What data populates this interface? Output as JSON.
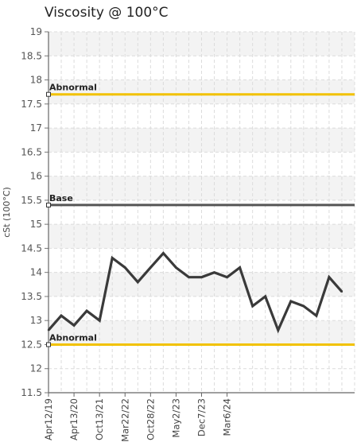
{
  "chart_data": {
    "type": "line",
    "title": "Viscosity @ 100°C",
    "ylabel": "cSt (100°C)",
    "ylim": [
      11.5,
      19
    ],
    "yticks": [
      "11.5",
      "12",
      "12.5",
      "13",
      "13.5",
      "14",
      "14.5",
      "15",
      "15.5",
      "16",
      "16.5",
      "17",
      "17.5",
      "18",
      "18.5",
      "19"
    ],
    "xtick_labels": [
      "Apr12/19",
      "Apr13/20",
      "Oct13/21",
      "Mar22/22",
      "Oct28/22",
      "May2/23",
      "Dec7/23",
      "Mar6/24"
    ],
    "grid": true,
    "series": [
      {
        "values": [
          12.8,
          13.1,
          12.9,
          13.2,
          13.0,
          14.3,
          14.1,
          13.8,
          14.1,
          14.4,
          14.1,
          13.9,
          13.9,
          14.0,
          13.9,
          14.1,
          13.3,
          13.5,
          12.8,
          13.4,
          13.3,
          13.1,
          13.9,
          13.6
        ],
        "color": "#3a3a3a"
      }
    ],
    "reference_lines": [
      {
        "label": "Abnormal",
        "value": 17.7,
        "color": "#f2c200"
      },
      {
        "label": "Base",
        "value": 15.4,
        "color": "#555555"
      },
      {
        "label": "Abnormal",
        "value": 12.5,
        "color": "#f2c200"
      }
    ]
  }
}
